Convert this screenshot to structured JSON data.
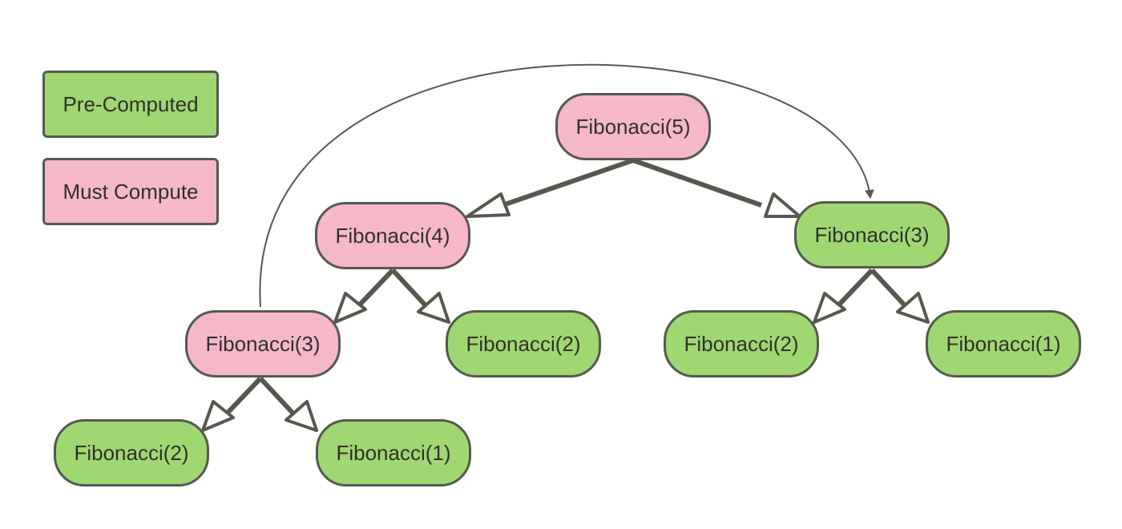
{
  "legend": {
    "precomputed": {
      "label": "Pre-Computed",
      "color": "#9fd872"
    },
    "must_compute": {
      "label": "Must Compute",
      "color": "#f5b8c9"
    }
  },
  "nodes": {
    "fib5": {
      "label": "Fibonacci(5)",
      "status": "must_compute"
    },
    "fib4": {
      "label": "Fibonacci(4)",
      "status": "must_compute"
    },
    "fib3_right": {
      "label": "Fibonacci(3)",
      "status": "precomputed"
    },
    "fib3_left": {
      "label": "Fibonacci(3)",
      "status": "must_compute"
    },
    "fib2_mid": {
      "label": "Fibonacci(2)",
      "status": "precomputed"
    },
    "fib2_right": {
      "label": "Fibonacci(2)",
      "status": "precomputed"
    },
    "fib1_right": {
      "label": "Fibonacci(1)",
      "status": "precomputed"
    },
    "fib2_bottom": {
      "label": "Fibonacci(2)",
      "status": "precomputed"
    },
    "fib1_bottom": {
      "label": "Fibonacci(1)",
      "status": "precomputed"
    }
  },
  "edges": [
    [
      "fib5",
      "fib4"
    ],
    [
      "fib5",
      "fib3_right"
    ],
    [
      "fib4",
      "fib3_left"
    ],
    [
      "fib4",
      "fib2_mid"
    ],
    [
      "fib3_right",
      "fib2_right"
    ],
    [
      "fib3_right",
      "fib1_right"
    ],
    [
      "fib3_left",
      "fib2_bottom"
    ],
    [
      "fib3_left",
      "fib1_bottom"
    ]
  ],
  "reuse_link": [
    "fib3_left",
    "fib3_right"
  ],
  "colors": {
    "line": "#56584f",
    "border": "#56584f"
  }
}
